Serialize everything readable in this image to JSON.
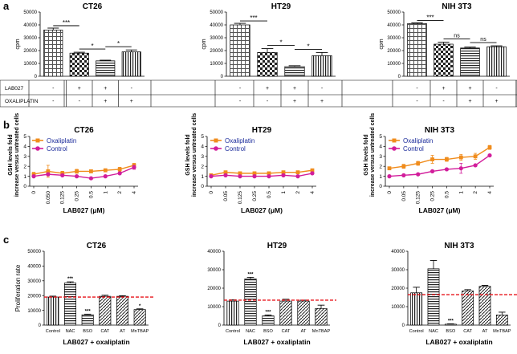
{
  "panel_labels": [
    "a",
    "b",
    "c"
  ],
  "panel_a": {
    "treatments": [
      {
        "name": "LAB027",
        "values": [
          "-",
          "+",
          "+",
          "-"
        ]
      },
      {
        "name": "OXALIPLATIN",
        "values": [
          "-",
          "-",
          "+",
          "+"
        ]
      }
    ]
  },
  "panel_b": {
    "legend": {
      "oxaliplatin": "Oxaliplatin",
      "control": "Control"
    },
    "colors": {
      "oxaliplatin": "#f08c1c",
      "control": "#d21d9b"
    }
  },
  "panel_c": {
    "threshold_color": "#e8141a"
  },
  "chart_data": [
    {
      "panel": "a",
      "type": "bar",
      "title": "CT26",
      "ylabel": "cpm",
      "ylim": [
        0,
        50000
      ],
      "yticks": [
        0,
        10000,
        20000,
        30000,
        40000,
        50000
      ],
      "categories": [
        "-/-",
        "+/-",
        "+/+",
        "-/+"
      ],
      "values": [
        36000,
        18000,
        12000,
        19000
      ],
      "errors": [
        1500,
        700,
        500,
        1500
      ],
      "significance": [
        {
          "from": 0,
          "to": 1,
          "label": "***"
        },
        {
          "from": 1,
          "to": 2,
          "label": "*"
        },
        {
          "from": 2,
          "to": 3,
          "label": "*"
        }
      ]
    },
    {
      "panel": "a",
      "type": "bar",
      "title": "HT29",
      "ylabel": "cpm",
      "ylim": [
        0,
        50000
      ],
      "yticks": [
        0,
        10000,
        20000,
        30000,
        40000,
        50000
      ],
      "categories": [
        "-/-",
        "+/-",
        "+/+",
        "-/+"
      ],
      "values": [
        40000,
        18500,
        7500,
        16000
      ],
      "errors": [
        1200,
        3000,
        700,
        2500
      ],
      "significance": [
        {
          "from": 0,
          "to": 1,
          "label": "***"
        },
        {
          "from": 1,
          "to": 2,
          "label": "*"
        },
        {
          "from": 2,
          "to": 3,
          "label": "*"
        }
      ]
    },
    {
      "panel": "a",
      "type": "bar",
      "title": "NIH 3T3",
      "ylabel": "cpm",
      "ylim": [
        0,
        50000
      ],
      "yticks": [
        0,
        10000,
        20000,
        30000,
        40000,
        50000
      ],
      "categories": [
        "-/-",
        "+/-",
        "+/+",
        "-/+"
      ],
      "values": [
        41000,
        25000,
        22000,
        23000
      ],
      "errors": [
        600,
        1500,
        700,
        700
      ],
      "significance": [
        {
          "from": 0,
          "to": 1,
          "label": "***"
        },
        {
          "from": 1,
          "to": 2,
          "label": "ns"
        },
        {
          "from": 2,
          "to": 3,
          "label": "ns"
        }
      ]
    },
    {
      "panel": "b",
      "type": "line",
      "title": "CT26",
      "ylabel": "GSH levels fold increase versus untreated cells",
      "xlabel": "LAB027 (μM)",
      "ylim": [
        0,
        5
      ],
      "yticks": [
        0,
        1,
        2,
        3,
        4,
        5
      ],
      "x": [
        "0",
        "0.050",
        "0.125",
        "0.25",
        "0.5",
        "1",
        "2",
        "4"
      ],
      "series": [
        {
          "name": "Oxaliplatin",
          "values": [
            1.2,
            1.5,
            1.3,
            1.5,
            1.5,
            1.6,
            1.7,
            2.1
          ],
          "errors": [
            0.2,
            0.6,
            0.2,
            0.2,
            0.15,
            0.15,
            0.2,
            0.2
          ]
        },
        {
          "name": "Control",
          "values": [
            1.0,
            1.2,
            1.1,
            1.0,
            0.8,
            1.0,
            1.3,
            1.9
          ],
          "errors": [
            0.1,
            0.15,
            0.1,
            0.1,
            0.1,
            0.1,
            0.1,
            0.2
          ]
        }
      ]
    },
    {
      "panel": "b",
      "type": "line",
      "title": "HT29",
      "ylabel": "GSH levels fold increase versus untreated cells",
      "xlabel": "LAB027 (μM)",
      "ylim": [
        0,
        5
      ],
      "yticks": [
        0,
        1,
        2,
        3,
        4,
        5
      ],
      "x": [
        "0",
        "0.05",
        "0.125",
        "0.25",
        "0.5",
        "1",
        "2",
        "4"
      ],
      "series": [
        {
          "name": "Oxaliplatin",
          "values": [
            1.1,
            1.4,
            1.3,
            1.3,
            1.3,
            1.4,
            1.4,
            1.6
          ],
          "errors": [
            0.1,
            0.1,
            0.1,
            0.1,
            0.1,
            0.1,
            0.1,
            0.1
          ]
        },
        {
          "name": "Control",
          "values": [
            1.0,
            1.1,
            1.0,
            1.0,
            1.0,
            1.1,
            1.0,
            1.3
          ],
          "errors": [
            0.05,
            0.05,
            0.05,
            0.05,
            0.05,
            0.05,
            0.05,
            0.05
          ]
        }
      ]
    },
    {
      "panel": "b",
      "type": "line",
      "title": "NIH 3T3",
      "ylabel": "GSH levels fold increase versus untreated cells",
      "xlabel": "LAB027 (μM)",
      "ylim": [
        0,
        5
      ],
      "yticks": [
        0,
        1,
        2,
        3,
        4,
        5
      ],
      "x": [
        "0",
        "0.05",
        "0.125",
        "0.25",
        "0.5",
        "1",
        "2",
        "4"
      ],
      "series": [
        {
          "name": "Oxaliplatin",
          "values": [
            1.8,
            2.0,
            2.3,
            2.7,
            2.7,
            2.9,
            3.0,
            3.9
          ],
          "errors": [
            0.1,
            0.2,
            0.2,
            0.4,
            0.2,
            0.3,
            0.3,
            0.2
          ]
        },
        {
          "name": "Control",
          "values": [
            1.0,
            1.1,
            1.2,
            1.5,
            1.7,
            1.8,
            2.1,
            3.1
          ],
          "errors": [
            0.1,
            0.1,
            0.1,
            0.1,
            0.1,
            0.5,
            0.1,
            0.1
          ]
        }
      ]
    },
    {
      "panel": "c",
      "type": "bar",
      "title": "CT26",
      "ylabel": "Proliferation rate",
      "xlabel": "LAB027 + oxaliplatin",
      "ylim": [
        0,
        50000
      ],
      "yticks": [
        0,
        10000,
        20000,
        30000,
        40000,
        50000
      ],
      "categories": [
        "Control",
        "NAC",
        "BSO",
        "CAT",
        "AT",
        "MnTBAP"
      ],
      "values": [
        19000,
        28500,
        7000,
        19500,
        19500,
        10500
      ],
      "errors": [
        600,
        800,
        400,
        700,
        400,
        500
      ],
      "significance": [
        "",
        "***",
        "***",
        "",
        "",
        "*"
      ],
      "threshold": 19000
    },
    {
      "panel": "c",
      "type": "bar",
      "title": "HT29",
      "ylabel": "",
      "xlabel": "LAB027 + oxaliplatin",
      "ylim": [
        0,
        40000
      ],
      "yticks": [
        0,
        10000,
        20000,
        30000,
        40000
      ],
      "categories": [
        "Control",
        "NAC",
        "BSO",
        "CAT",
        "AT",
        "MnTBAP"
      ],
      "values": [
        13000,
        25000,
        5000,
        13000,
        13000,
        9000
      ],
      "errors": [
        700,
        900,
        500,
        1000,
        500,
        1800
      ],
      "significance": [
        "",
        "***",
        "***",
        "",
        "",
        ""
      ],
      "threshold": 13500
    },
    {
      "panel": "c",
      "type": "bar",
      "title": "NIH 3T3",
      "ylabel": "",
      "xlabel": "LAB027 + oxaliplatin",
      "ylim": [
        0,
        40000
      ],
      "yticks": [
        0,
        10000,
        20000,
        30000,
        40000
      ],
      "categories": [
        "Control",
        "NAC",
        "BSO",
        "CAT",
        "AT",
        "MnTBAP"
      ],
      "values": [
        17500,
        30500,
        500,
        18500,
        21000,
        5500
      ],
      "errors": [
        3000,
        4500,
        200,
        700,
        500,
        1500
      ],
      "significance": [
        "",
        "",
        "***",
        "",
        "",
        ""
      ],
      "threshold": 16500
    }
  ]
}
